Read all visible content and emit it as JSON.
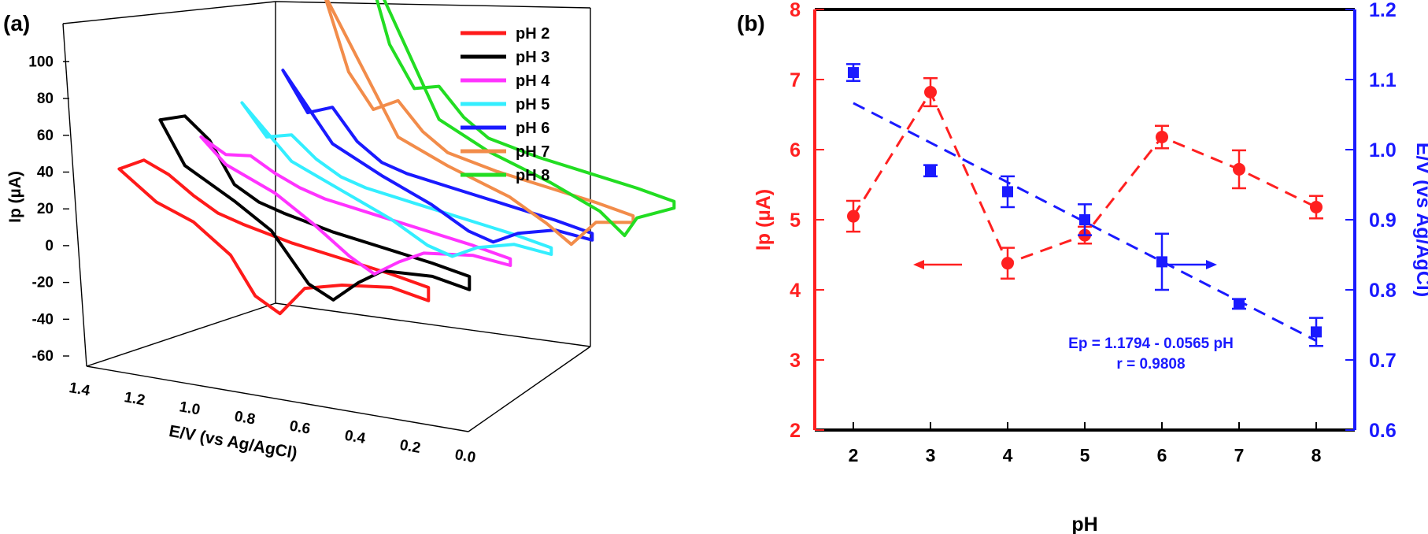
{
  "panel_a_label": "(a)",
  "panel_b_label": "(b)",
  "chart_data": [
    {
      "panel": "(a)",
      "type": "line",
      "view": "3d-waterfall",
      "zlabel": "Ip (µA)",
      "xlabel": "E/V (vs Ag/AgCl)",
      "z_ticks": [
        "100",
        "80",
        "60",
        "40",
        "20",
        "0",
        "-20",
        "-40",
        "-60"
      ],
      "x_ticks": [
        "1.4",
        "1.2",
        "1.0",
        "0.8",
        "0.6",
        "0.4",
        "0.2",
        "0.0"
      ],
      "zlim": [
        -60,
        110
      ],
      "xlim": [
        1.4,
        0.0
      ],
      "legend_position": "top-right",
      "series": [
        {
          "name": "pH 2",
          "color": "#ff1a1a",
          "forward": [
            [
              1.3,
              22
            ],
            [
              1.2,
              30
            ],
            [
              1.1,
              24
            ],
            [
              1.0,
              14
            ],
            [
              0.9,
              6
            ],
            [
              0.8,
              2
            ],
            [
              0.6,
              -4
            ],
            [
              0.4,
              -8
            ],
            [
              0.2,
              -12
            ],
            [
              0.05,
              -16
            ]
          ],
          "reverse": [
            [
              0.05,
              -24
            ],
            [
              0.2,
              -20
            ],
            [
              0.4,
              -24
            ],
            [
              0.55,
              -30
            ],
            [
              0.65,
              -48
            ],
            [
              0.75,
              -40
            ],
            [
              0.85,
              -18
            ],
            [
              1.0,
              -2
            ],
            [
              1.15,
              6
            ],
            [
              1.3,
              22
            ]
          ]
        },
        {
          "name": "pH 3",
          "color": "#000000",
          "forward": [
            [
              1.3,
              45
            ],
            [
              1.2,
              50
            ],
            [
              1.1,
              38
            ],
            [
              1.0,
              14
            ],
            [
              0.9,
              6
            ],
            [
              0.8,
              2
            ],
            [
              0.6,
              -4
            ],
            [
              0.4,
              -8
            ],
            [
              0.2,
              -12
            ],
            [
              0.05,
              -16
            ]
          ],
          "reverse": [
            [
              0.05,
              -24
            ],
            [
              0.2,
              -20
            ],
            [
              0.4,
              -22
            ],
            [
              0.5,
              -32
            ],
            [
              0.6,
              -45
            ],
            [
              0.7,
              -38
            ],
            [
              0.85,
              -10
            ],
            [
              1.0,
              4
            ],
            [
              1.2,
              20
            ],
            [
              1.3,
              45
            ]
          ]
        },
        {
          "name": "pH 4",
          "color": "#ff33ff",
          "forward": [
            [
              1.3,
              28
            ],
            [
              1.2,
              20
            ],
            [
              1.1,
              22
            ],
            [
              1.0,
              14
            ],
            [
              0.9,
              8
            ],
            [
              0.8,
              4
            ],
            [
              0.6,
              0
            ],
            [
              0.4,
              -4
            ],
            [
              0.2,
              -8
            ],
            [
              0.05,
              -12
            ]
          ],
          "reverse": [
            [
              0.05,
              -16
            ],
            [
              0.2,
              -14
            ],
            [
              0.4,
              -18
            ],
            [
              0.5,
              -26
            ],
            [
              0.6,
              -36
            ],
            [
              0.7,
              -28
            ],
            [
              0.85,
              -12
            ],
            [
              1.0,
              2
            ],
            [
              1.2,
              14
            ],
            [
              1.3,
              28
            ]
          ]
        },
        {
          "name": "pH 5",
          "color": "#33eeff",
          "forward": [
            [
              1.3,
              42
            ],
            [
              1.2,
              24
            ],
            [
              1.1,
              28
            ],
            [
              1.0,
              16
            ],
            [
              0.9,
              8
            ],
            [
              0.8,
              4
            ],
            [
              0.6,
              0
            ],
            [
              0.4,
              -4
            ],
            [
              0.2,
              -8
            ],
            [
              0.05,
              -12
            ]
          ],
          "reverse": [
            [
              0.05,
              -16
            ],
            [
              0.2,
              -14
            ],
            [
              0.35,
              -20
            ],
            [
              0.45,
              -28
            ],
            [
              0.55,
              -24
            ],
            [
              0.7,
              -12
            ],
            [
              0.9,
              0
            ],
            [
              1.1,
              12
            ],
            [
              1.3,
              42
            ]
          ]
        },
        {
          "name": "pH 6",
          "color": "#1a1aff",
          "forward": [
            [
              1.3,
              55
            ],
            [
              1.2,
              32
            ],
            [
              1.1,
              38
            ],
            [
              1.0,
              20
            ],
            [
              0.9,
              10
            ],
            [
              0.8,
              6
            ],
            [
              0.6,
              2
            ],
            [
              0.4,
              -2
            ],
            [
              0.2,
              -6
            ],
            [
              0.05,
              -10
            ]
          ],
          "reverse": [
            [
              0.05,
              -14
            ],
            [
              0.2,
              -12
            ],
            [
              0.35,
              -18
            ],
            [
              0.45,
              -26
            ],
            [
              0.55,
              -22
            ],
            [
              0.7,
              -10
            ],
            [
              0.9,
              2
            ],
            [
              1.1,
              16
            ],
            [
              1.3,
              55
            ]
          ]
        },
        {
          "name": "pH 7",
          "color": "#f28c4a",
          "forward": [
            [
              1.3,
              95
            ],
            [
              1.2,
              50
            ],
            [
              1.1,
              30
            ],
            [
              1.0,
              38
            ],
            [
              0.9,
              22
            ],
            [
              0.8,
              12
            ],
            [
              0.6,
              6
            ],
            [
              0.4,
              2
            ],
            [
              0.2,
              -2
            ],
            [
              0.05,
              -6
            ]
          ],
          "reverse": [
            [
              0.05,
              -10
            ],
            [
              0.2,
              -14
            ],
            [
              0.3,
              -30
            ],
            [
              0.4,
              -20
            ],
            [
              0.55,
              -8
            ],
            [
              0.8,
              4
            ],
            [
              1.0,
              16
            ],
            [
              1.3,
              95
            ]
          ]
        },
        {
          "name": "pH 8",
          "color": "#22dd22",
          "forward": [
            [
              1.3,
              110
            ],
            [
              1.2,
              60
            ],
            [
              1.1,
              36
            ],
            [
              1.0,
              40
            ],
            [
              0.9,
              24
            ],
            [
              0.8,
              14
            ],
            [
              0.6,
              8
            ],
            [
              0.4,
              4
            ],
            [
              0.2,
              0
            ],
            [
              0.05,
              -4
            ]
          ],
          "reverse": [
            [
              0.05,
              -8
            ],
            [
              0.2,
              -18
            ],
            [
              0.25,
              -30
            ],
            [
              0.35,
              -18
            ],
            [
              0.55,
              -6
            ],
            [
              0.8,
              6
            ],
            [
              1.0,
              20
            ],
            [
              1.3,
              110
            ]
          ]
        }
      ]
    },
    {
      "panel": "(b)",
      "type": "line",
      "xlabel": "pH",
      "ylabel": "Ip (µA)",
      "y2label": "E/V (vs Ag/AgCl)",
      "xlim": [
        1.5,
        8.5
      ],
      "ylim": [
        2,
        8
      ],
      "y2lim": [
        0.6,
        1.2
      ],
      "x": [
        2,
        3,
        4,
        5,
        6,
        7,
        8
      ],
      "x_ticks": [
        "2",
        "3",
        "4",
        "5",
        "6",
        "7",
        "8"
      ],
      "y_ticks": [
        "2",
        "3",
        "4",
        "5",
        "6",
        "7",
        "8"
      ],
      "y2_ticks": [
        "0.6",
        "0.7",
        "0.8",
        "0.9",
        "1.0",
        "1.1",
        "1.2"
      ],
      "series": [
        {
          "axis": "left",
          "color": "#ff2020",
          "marker": "circle",
          "values": [
            5.05,
            6.82,
            4.38,
            4.78,
            6.18,
            5.72,
            5.18
          ],
          "errors": [
            0.22,
            0.2,
            0.22,
            0.12,
            0.16,
            0.27,
            0.16
          ]
        },
        {
          "axis": "right",
          "color": "#1a1aff",
          "marker": "square",
          "values": [
            1.11,
            0.97,
            0.94,
            0.9,
            0.84,
            0.78,
            0.74
          ],
          "errors": [
            0.012,
            0.008,
            0.022,
            0.022,
            0.04,
            0.007,
            0.02
          ]
        }
      ],
      "fit_line": {
        "axis": "right",
        "color": "#1a1aff",
        "intercept": 1.1794,
        "slope": -0.0565
      },
      "annotations": [
        "Ep = 1.1794 - 0.0565 pH",
        "r = 0.9808"
      ]
    }
  ]
}
